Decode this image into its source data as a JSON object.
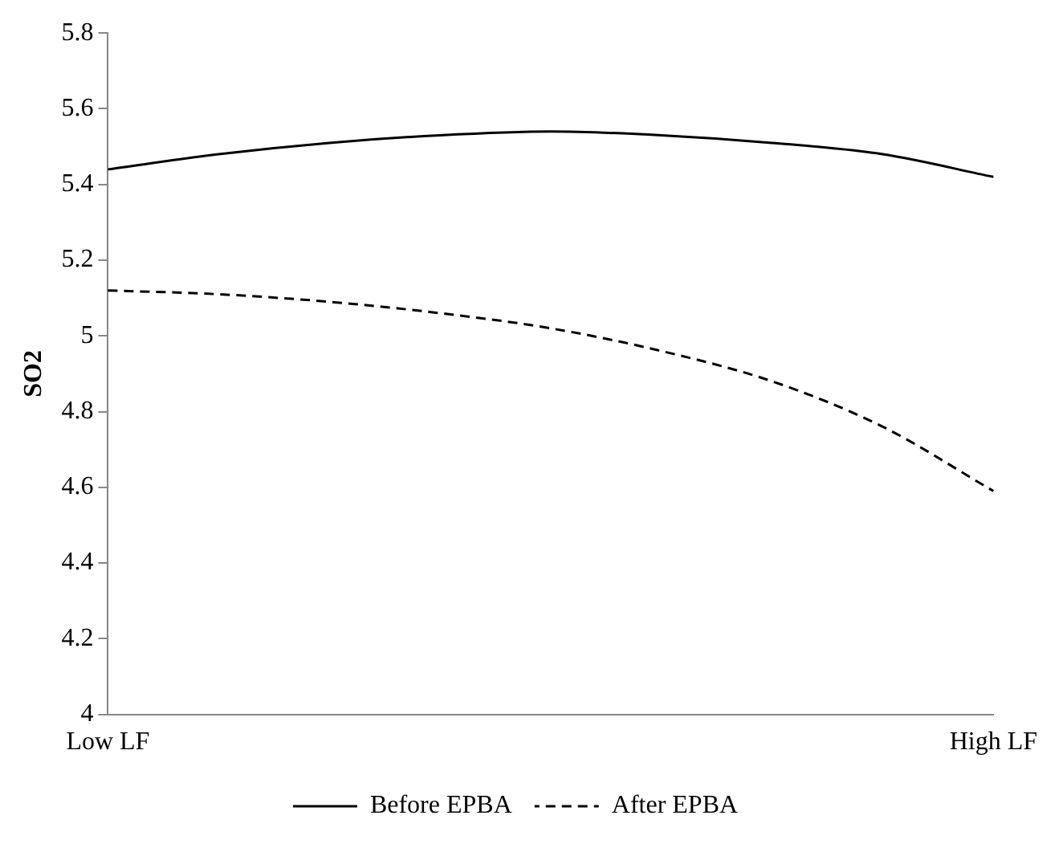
{
  "chart_data": {
    "type": "line",
    "ylabel": "SO2",
    "categories": [
      "Low LF",
      null,
      null,
      null,
      null,
      null,
      null,
      null,
      "High LF"
    ],
    "series": [
      {
        "name": "Before EPBA",
        "color": "#000000",
        "line_style": "solid",
        "values": [
          5.44,
          5.48,
          5.51,
          5.53,
          5.54,
          5.53,
          5.51,
          5.48,
          5.42
        ]
      },
      {
        "name": "After EPBA",
        "color": "#000000",
        "line_style": "dashed",
        "values": [
          5.12,
          5.11,
          5.09,
          5.06,
          5.02,
          4.96,
          4.88,
          4.76,
          4.59
        ]
      }
    ],
    "ylim": [
      4,
      5.8
    ],
    "yticks": [
      4,
      4.2,
      4.4,
      4.6,
      4.8,
      5,
      5.2,
      5.4,
      5.6,
      5.8
    ],
    "grid": false,
    "legend": "bottom",
    "marker": "none"
  }
}
